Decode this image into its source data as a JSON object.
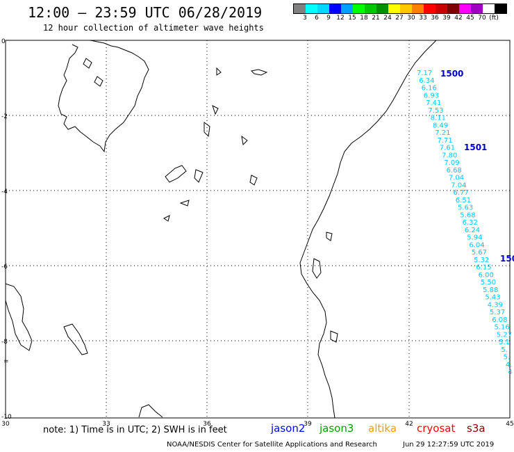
{
  "header": {
    "title": "12:00 – 23:59 UTC 06/28/2019",
    "subtitle": "12 hour collection of altimeter wave heights"
  },
  "colorbar": {
    "colors": [
      "#808080",
      "#00ffff",
      "#00d8ff",
      "#0000ff",
      "#00a0ff",
      "#00ff00",
      "#00c800",
      "#009000",
      "#ffff00",
      "#ffc800",
      "#ff8000",
      "#ff0000",
      "#c80000",
      "#800000",
      "#ff00ff",
      "#a000c0",
      "#ffffff",
      "#000000"
    ],
    "labels": [
      "3",
      "6",
      "9",
      "12",
      "15",
      "18",
      "21",
      "24",
      "27",
      "30",
      "33",
      "36",
      "39",
      "42",
      "45",
      "70",
      "(ft)"
    ]
  },
  "axes": {
    "lat_labels": [
      "0",
      "-2",
      "-4",
      "-6",
      "-8",
      "-10"
    ],
    "lon_labels": [
      "30",
      "33",
      "36",
      "39",
      "42",
      "45"
    ],
    "equator_marker": "="
  },
  "passes": [
    {
      "label": "1500",
      "values": [
        "7.17",
        "6.34",
        "6.16",
        "6.93",
        "7.41",
        "7.53",
        "8.11",
        "8.49",
        "7.21",
        "7.71",
        "7.61",
        "7.80",
        "7.09",
        "6.68",
        "7.04",
        "7.04",
        "6.77",
        "6.51",
        "5.63",
        "5.68",
        "6.32",
        "6.24",
        "5.94",
        "6.04",
        "5.67",
        "5.32",
        "6.15",
        "6.00",
        "5.50",
        "5.88",
        "5.43",
        "4.39",
        "5.37",
        "6.08",
        "5.16",
        "5.27",
        "5.1",
        "5.",
        "5.",
        "4.",
        "4"
      ]
    },
    {
      "label": "1501"
    },
    {
      "label": "150"
    }
  ],
  "footer": {
    "note": "note: 1) Time is in UTC; 2) SWH is in feet",
    "satellites": [
      {
        "name": "jason2",
        "color": "#0000ff"
      },
      {
        "name": "jason3",
        "color": "#00a000"
      },
      {
        "name": "altika",
        "color": "#ff9900"
      },
      {
        "name": "cryosat",
        "color": "#ff0000"
      },
      {
        "name": "s3a",
        "color": "#800000"
      }
    ],
    "credit": "NOAA/NESDIS Center for Satellite Applications and Research",
    "timestamp": "Jun 29 12:27:59 UTC 2019"
  },
  "colors": {
    "track_values": "#00c8ff",
    "pass_labels": "#0000c0"
  }
}
